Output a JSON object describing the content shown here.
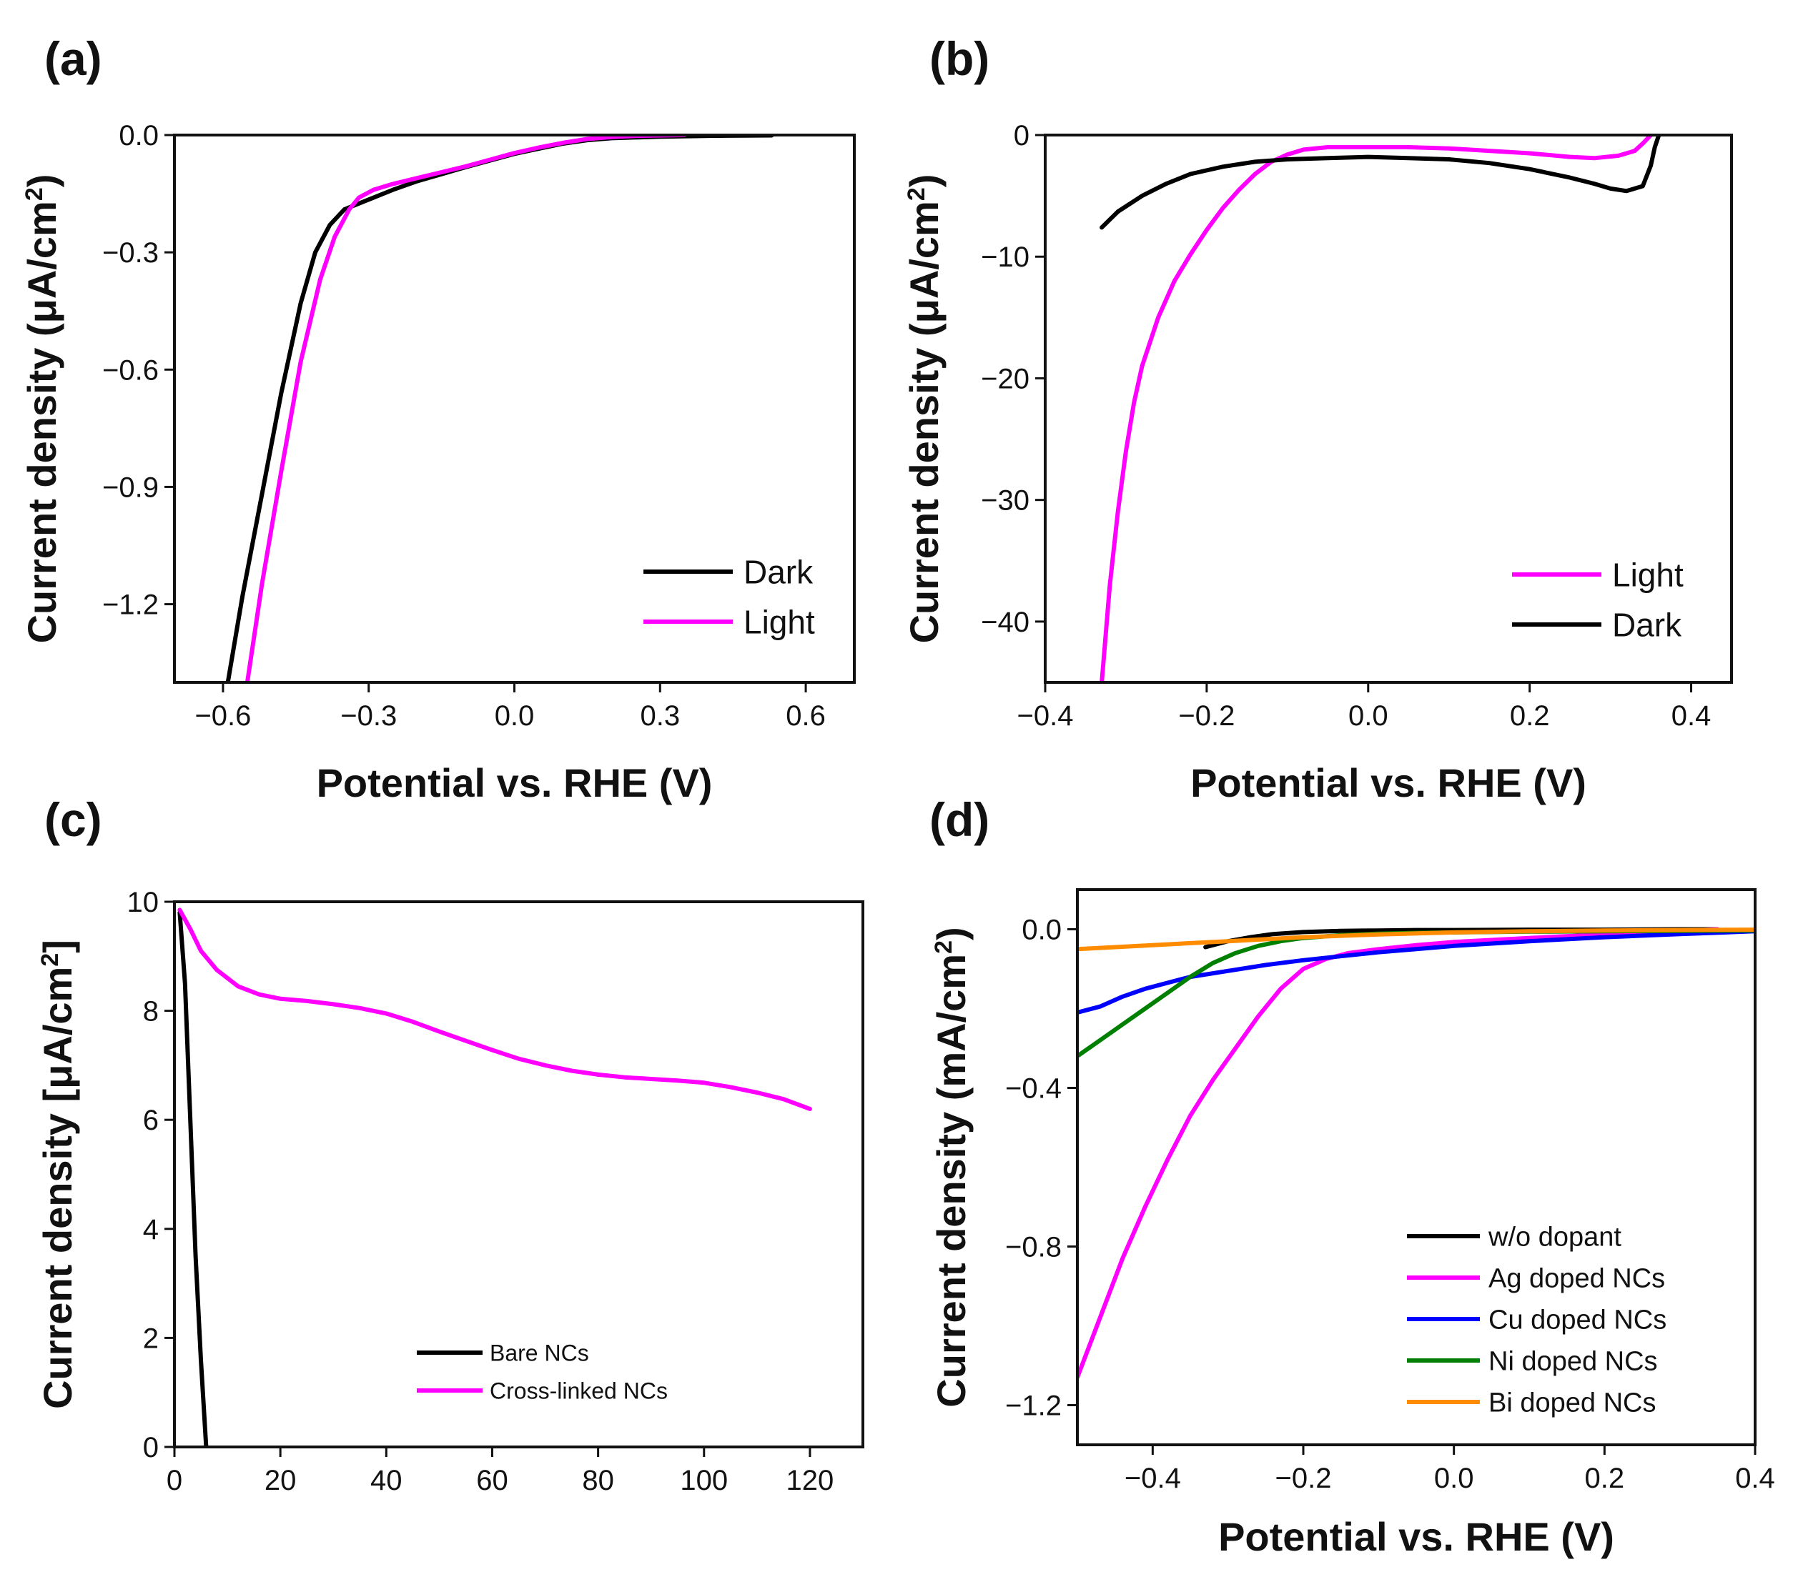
{
  "chart_data": [
    {
      "panel": "(a)",
      "type": "line",
      "xlabel": "Potential vs. RHE (V)",
      "ylabel": "Current density (μA/cm²)",
      "xlim": [
        -0.7,
        0.7
      ],
      "ylim": [
        -1.4,
        0.0
      ],
      "xticks": [
        "−0.6",
        "−0.3",
        "0.0",
        "0.3",
        "0.6"
      ],
      "yticks": [
        "0.0",
        "−0.3",
        "−0.6",
        "−0.9",
        "−1.2"
      ],
      "legend_position": "bottom-right",
      "series": [
        {
          "name": "Dark",
          "color": "#000000",
          "x": [
            -0.59,
            -0.56,
            -0.52,
            -0.48,
            -0.44,
            -0.41,
            -0.38,
            -0.35,
            -0.3,
            -0.25,
            -0.2,
            -0.15,
            -0.1,
            -0.05,
            0.0,
            0.05,
            0.1,
            0.15,
            0.2,
            0.3,
            0.4,
            0.53
          ],
          "y": [
            -1.4,
            -1.18,
            -0.92,
            -0.66,
            -0.43,
            -0.3,
            -0.23,
            -0.19,
            -0.165,
            -0.14,
            -0.118,
            -0.1,
            -0.082,
            -0.065,
            -0.048,
            -0.035,
            -0.022,
            -0.013,
            -0.008,
            -0.004,
            -0.002,
            -0.001
          ]
        },
        {
          "name": "Light",
          "color": "#ff00ff",
          "x": [
            -0.55,
            -0.52,
            -0.48,
            -0.44,
            -0.4,
            -0.37,
            -0.34,
            -0.32,
            -0.29,
            -0.25,
            -0.2,
            -0.15,
            -0.1,
            -0.05,
            0.0,
            0.05,
            0.1,
            0.15,
            0.2,
            0.25,
            0.3,
            0.35
          ],
          "y": [
            -1.4,
            -1.15,
            -0.86,
            -0.58,
            -0.37,
            -0.26,
            -0.19,
            -0.16,
            -0.14,
            -0.125,
            -0.11,
            -0.095,
            -0.08,
            -0.063,
            -0.046,
            -0.032,
            -0.02,
            -0.01,
            -0.005,
            -0.002,
            -0.001,
            0.0
          ]
        }
      ]
    },
    {
      "panel": "(b)",
      "type": "line",
      "xlabel": "Potential vs. RHE (V)",
      "ylabel": "Current density (μA/cm²)",
      "xlim": [
        -0.4,
        0.45
      ],
      "ylim": [
        -45,
        0
      ],
      "xticks": [
        "−0.4",
        "−0.2",
        "0.0",
        "0.2",
        "0.4"
      ],
      "yticks": [
        "0",
        "−10",
        "−20",
        "−30",
        "−40"
      ],
      "legend_position": "bottom-right",
      "series": [
        {
          "name": "Light",
          "color": "#ff00ff",
          "x": [
            -0.33,
            -0.32,
            -0.31,
            -0.3,
            -0.29,
            -0.28,
            -0.26,
            -0.24,
            -0.22,
            -0.2,
            -0.18,
            -0.16,
            -0.14,
            -0.12,
            -0.1,
            -0.08,
            -0.05,
            0.0,
            0.05,
            0.1,
            0.15,
            0.2,
            0.25,
            0.28,
            0.31,
            0.33,
            0.34,
            0.35
          ],
          "y": [
            -45,
            -37,
            -31,
            -26,
            -22,
            -19,
            -15,
            -12,
            -9.8,
            -7.8,
            -6,
            -4.5,
            -3.2,
            -2.2,
            -1.6,
            -1.2,
            -1.0,
            -1.0,
            -1.0,
            -1.1,
            -1.3,
            -1.5,
            -1.8,
            -1.9,
            -1.7,
            -1.3,
            -0.7,
            0.0
          ]
        },
        {
          "name": "Dark",
          "color": "#000000",
          "x": [
            -0.33,
            -0.31,
            -0.28,
            -0.25,
            -0.22,
            -0.18,
            -0.14,
            -0.1,
            -0.05,
            0.0,
            0.05,
            0.1,
            0.15,
            0.2,
            0.25,
            0.28,
            0.3,
            0.32,
            0.34,
            0.35,
            0.355,
            0.36
          ],
          "y": [
            -7.6,
            -6.3,
            -5.0,
            -4.0,
            -3.2,
            -2.6,
            -2.2,
            -2.0,
            -1.9,
            -1.8,
            -1.9,
            -2.0,
            -2.3,
            -2.8,
            -3.5,
            -4.0,
            -4.4,
            -4.6,
            -4.2,
            -2.5,
            -1.0,
            0.0
          ]
        }
      ]
    },
    {
      "panel": "(c)",
      "type": "line",
      "ylabel": "Current density [μA/cm²]",
      "xlim": [
        0,
        130
      ],
      "ylim": [
        0,
        10
      ],
      "xticks": [
        "0",
        "20",
        "40",
        "60",
        "80",
        "100",
        "120"
      ],
      "yticks": [
        "0",
        "2",
        "4",
        "6",
        "8",
        "10"
      ],
      "legend_position": "bottom-right",
      "series": [
        {
          "name": "Bare NCs",
          "color": "#000000",
          "x": [
            1,
            2,
            3,
            4,
            5,
            5.5,
            6
          ],
          "y": [
            9.8,
            8.5,
            6.0,
            3.5,
            1.6,
            0.8,
            0.0
          ]
        },
        {
          "name": "Cross-linked NCs",
          "color": "#ff00ff",
          "x": [
            1,
            3,
            5,
            8,
            12,
            16,
            20,
            25,
            30,
            35,
            40,
            45,
            50,
            55,
            60,
            65,
            70,
            75,
            80,
            85,
            90,
            95,
            100,
            105,
            110,
            115,
            120
          ],
          "y": [
            9.85,
            9.5,
            9.1,
            8.75,
            8.45,
            8.3,
            8.22,
            8.18,
            8.12,
            8.05,
            7.95,
            7.8,
            7.62,
            7.45,
            7.28,
            7.12,
            7.0,
            6.9,
            6.83,
            6.78,
            6.75,
            6.72,
            6.68,
            6.6,
            6.5,
            6.38,
            6.2
          ]
        }
      ]
    },
    {
      "panel": "(d)",
      "type": "line",
      "xlabel": "Potential vs. RHE (V)",
      "ylabel": "Current density (mA/cm²)",
      "xlim": [
        -0.5,
        0.4
      ],
      "ylim": [
        -1.3,
        0.1
      ],
      "xticks": [
        "−0.4",
        "−0.2",
        "0.0",
        "0.2",
        "0.4"
      ],
      "yticks": [
        "0.0",
        "−0.4",
        "−0.8",
        "−1.2"
      ],
      "legend_position": "bottom-right",
      "series": [
        {
          "name": "w/o dopant",
          "color": "#000000",
          "x": [
            -0.33,
            -0.3,
            -0.27,
            -0.24,
            -0.2,
            -0.15,
            -0.1,
            -0.05,
            0.0,
            0.1,
            0.2,
            0.3,
            0.35
          ],
          "y": [
            -0.045,
            -0.03,
            -0.02,
            -0.012,
            -0.007,
            -0.004,
            -0.003,
            -0.002,
            -0.002,
            -0.001,
            -0.001,
            0.0,
            0.0
          ]
        },
        {
          "name": "Ag doped NCs",
          "color": "#ff00ff",
          "x": [
            -0.5,
            -0.47,
            -0.44,
            -0.41,
            -0.38,
            -0.35,
            -0.32,
            -0.29,
            -0.26,
            -0.23,
            -0.2,
            -0.17,
            -0.14,
            -0.1,
            -0.05,
            0.0,
            0.1,
            0.2,
            0.3,
            0.35
          ],
          "y": [
            -1.13,
            -0.98,
            -0.83,
            -0.7,
            -0.58,
            -0.47,
            -0.38,
            -0.3,
            -0.22,
            -0.15,
            -0.1,
            -0.075,
            -0.06,
            -0.05,
            -0.04,
            -0.032,
            -0.022,
            -0.013,
            -0.005,
            0.0
          ]
        },
        {
          "name": "Cu doped NCs",
          "color": "#0000ff",
          "x": [
            -0.5,
            -0.47,
            -0.44,
            -0.41,
            -0.38,
            -0.35,
            -0.3,
            -0.25,
            -0.2,
            -0.15,
            -0.1,
            -0.05,
            0.0,
            0.1,
            0.2,
            0.3,
            0.4
          ],
          "y": [
            -0.21,
            -0.195,
            -0.17,
            -0.15,
            -0.135,
            -0.12,
            -0.105,
            -0.09,
            -0.078,
            -0.068,
            -0.058,
            -0.05,
            -0.042,
            -0.03,
            -0.02,
            -0.012,
            -0.005
          ]
        },
        {
          "name": "Ni doped NCs",
          "color": "#008000",
          "x": [
            -0.5,
            -0.47,
            -0.44,
            -0.41,
            -0.38,
            -0.35,
            -0.32,
            -0.29,
            -0.26,
            -0.23,
            -0.2,
            -0.15,
            -0.1,
            -0.05,
            0.0,
            0.1,
            0.2,
            0.3,
            0.4
          ],
          "y": [
            -0.32,
            -0.28,
            -0.24,
            -0.2,
            -0.16,
            -0.12,
            -0.085,
            -0.06,
            -0.042,
            -0.03,
            -0.022,
            -0.015,
            -0.011,
            -0.009,
            -0.008,
            -0.006,
            -0.005,
            -0.004,
            -0.003
          ]
        },
        {
          "name": "Bi doped NCs",
          "color": "#ff8c00",
          "x": [
            -0.5,
            -0.4,
            -0.3,
            -0.2,
            -0.1,
            0.0,
            0.1,
            0.2,
            0.3,
            0.4
          ],
          "y": [
            -0.05,
            -0.04,
            -0.03,
            -0.02,
            -0.013,
            -0.008,
            -0.005,
            -0.003,
            -0.002,
            -0.001
          ]
        }
      ]
    }
  ]
}
